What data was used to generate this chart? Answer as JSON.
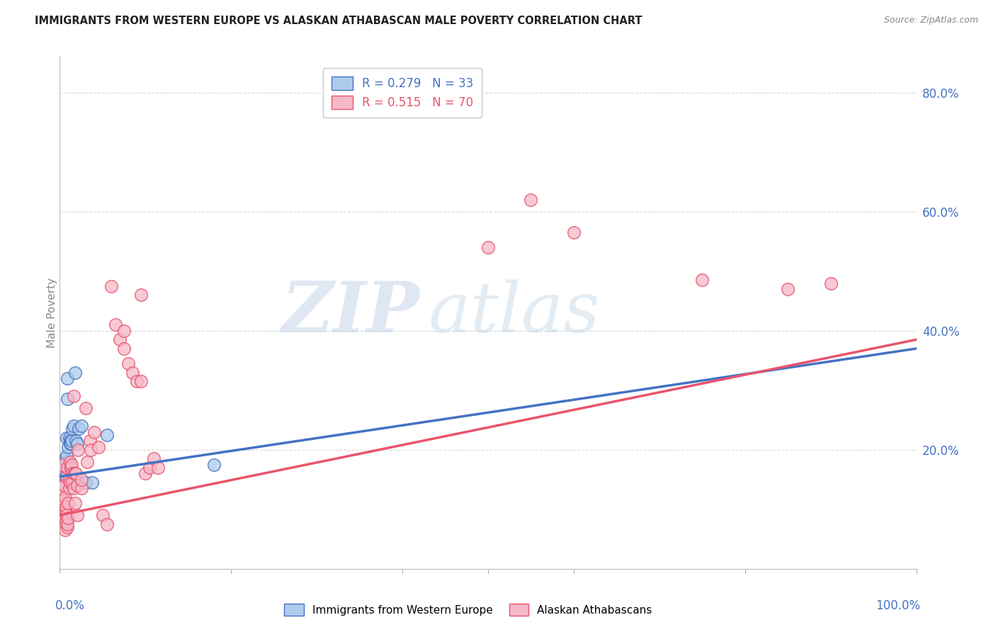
{
  "title": "IMMIGRANTS FROM WESTERN EUROPE VS ALASKAN ATHABASCAN MALE POVERTY CORRELATION CHART",
  "source": "Source: ZipAtlas.com",
  "ylabel": "Male Poverty",
  "ytick_vals": [
    0.0,
    0.2,
    0.4,
    0.6,
    0.8
  ],
  "ytick_labels": [
    "",
    "20.0%",
    "40.0%",
    "60.0%",
    "80.0%"
  ],
  "legend_line1": "R = 0.279   N = 33",
  "legend_line2": "R = 0.515   N = 70",
  "blue_color": "#aecbec",
  "pink_color": "#f5b8c8",
  "blue_line_color": "#4472c4",
  "pink_line_color": "#e9546b",
  "blue_scatter": [
    [
      0.001,
      0.14
    ],
    [
      0.002,
      0.135
    ],
    [
      0.003,
      0.125
    ],
    [
      0.003,
      0.09
    ],
    [
      0.004,
      0.105
    ],
    [
      0.004,
      0.095
    ],
    [
      0.005,
      0.11
    ],
    [
      0.005,
      0.085
    ],
    [
      0.006,
      0.155
    ],
    [
      0.006,
      0.185
    ],
    [
      0.007,
      0.18
    ],
    [
      0.007,
      0.145
    ],
    [
      0.008,
      0.22
    ],
    [
      0.008,
      0.19
    ],
    [
      0.009,
      0.285
    ],
    [
      0.009,
      0.32
    ],
    [
      0.01,
      0.205
    ],
    [
      0.011,
      0.22
    ],
    [
      0.012,
      0.215
    ],
    [
      0.012,
      0.21
    ],
    [
      0.013,
      0.21
    ],
    [
      0.014,
      0.215
    ],
    [
      0.015,
      0.235
    ],
    [
      0.016,
      0.24
    ],
    [
      0.018,
      0.33
    ],
    [
      0.019,
      0.215
    ],
    [
      0.02,
      0.21
    ],
    [
      0.022,
      0.235
    ],
    [
      0.025,
      0.24
    ],
    [
      0.03,
      0.145
    ],
    [
      0.038,
      0.145
    ],
    [
      0.055,
      0.225
    ],
    [
      0.18,
      0.175
    ]
  ],
  "pink_scatter": [
    [
      0.001,
      0.135
    ],
    [
      0.002,
      0.175
    ],
    [
      0.003,
      0.085
    ],
    [
      0.003,
      0.125
    ],
    [
      0.004,
      0.1
    ],
    [
      0.004,
      0.09
    ],
    [
      0.005,
      0.1
    ],
    [
      0.005,
      0.115
    ],
    [
      0.005,
      0.14
    ],
    [
      0.006,
      0.095
    ],
    [
      0.006,
      0.12
    ],
    [
      0.006,
      0.065
    ],
    [
      0.007,
      0.08
    ],
    [
      0.007,
      0.095
    ],
    [
      0.007,
      0.105
    ],
    [
      0.008,
      0.09
    ],
    [
      0.008,
      0.155
    ],
    [
      0.009,
      0.17
    ],
    [
      0.009,
      0.07
    ],
    [
      0.009,
      0.075
    ],
    [
      0.01,
      0.085
    ],
    [
      0.01,
      0.11
    ],
    [
      0.011,
      0.135
    ],
    [
      0.011,
      0.15
    ],
    [
      0.012,
      0.145
    ],
    [
      0.012,
      0.18
    ],
    [
      0.013,
      0.17
    ],
    [
      0.013,
      0.17
    ],
    [
      0.014,
      0.175
    ],
    [
      0.015,
      0.16
    ],
    [
      0.015,
      0.145
    ],
    [
      0.016,
      0.29
    ],
    [
      0.016,
      0.135
    ],
    [
      0.017,
      0.16
    ],
    [
      0.018,
      0.11
    ],
    [
      0.018,
      0.16
    ],
    [
      0.019,
      0.16
    ],
    [
      0.02,
      0.09
    ],
    [
      0.02,
      0.14
    ],
    [
      0.021,
      0.2
    ],
    [
      0.025,
      0.135
    ],
    [
      0.025,
      0.15
    ],
    [
      0.03,
      0.27
    ],
    [
      0.032,
      0.18
    ],
    [
      0.035,
      0.215
    ],
    [
      0.036,
      0.2
    ],
    [
      0.04,
      0.23
    ],
    [
      0.045,
      0.205
    ],
    [
      0.05,
      0.09
    ],
    [
      0.055,
      0.075
    ],
    [
      0.06,
      0.475
    ],
    [
      0.065,
      0.41
    ],
    [
      0.07,
      0.385
    ],
    [
      0.075,
      0.37
    ],
    [
      0.075,
      0.4
    ],
    [
      0.08,
      0.345
    ],
    [
      0.085,
      0.33
    ],
    [
      0.09,
      0.315
    ],
    [
      0.095,
      0.315
    ],
    [
      0.095,
      0.46
    ],
    [
      0.1,
      0.16
    ],
    [
      0.105,
      0.17
    ],
    [
      0.11,
      0.185
    ],
    [
      0.115,
      0.17
    ],
    [
      0.5,
      0.54
    ],
    [
      0.55,
      0.62
    ],
    [
      0.6,
      0.565
    ],
    [
      0.75,
      0.485
    ],
    [
      0.85,
      0.47
    ],
    [
      0.9,
      0.48
    ]
  ],
  "blue_line": {
    "x0": 0.0,
    "x1": 1.0,
    "y0": 0.155,
    "y1": 0.37
  },
  "pink_line": {
    "x0": 0.0,
    "x1": 1.0,
    "y0": 0.09,
    "y1": 0.385
  },
  "watermark_zip": "ZIP",
  "watermark_atlas": "atlas",
  "background_color": "#ffffff",
  "grid_color": "#d8d8d8",
  "xlim": [
    0.0,
    1.0
  ],
  "ylim": [
    0.0,
    0.86
  ]
}
